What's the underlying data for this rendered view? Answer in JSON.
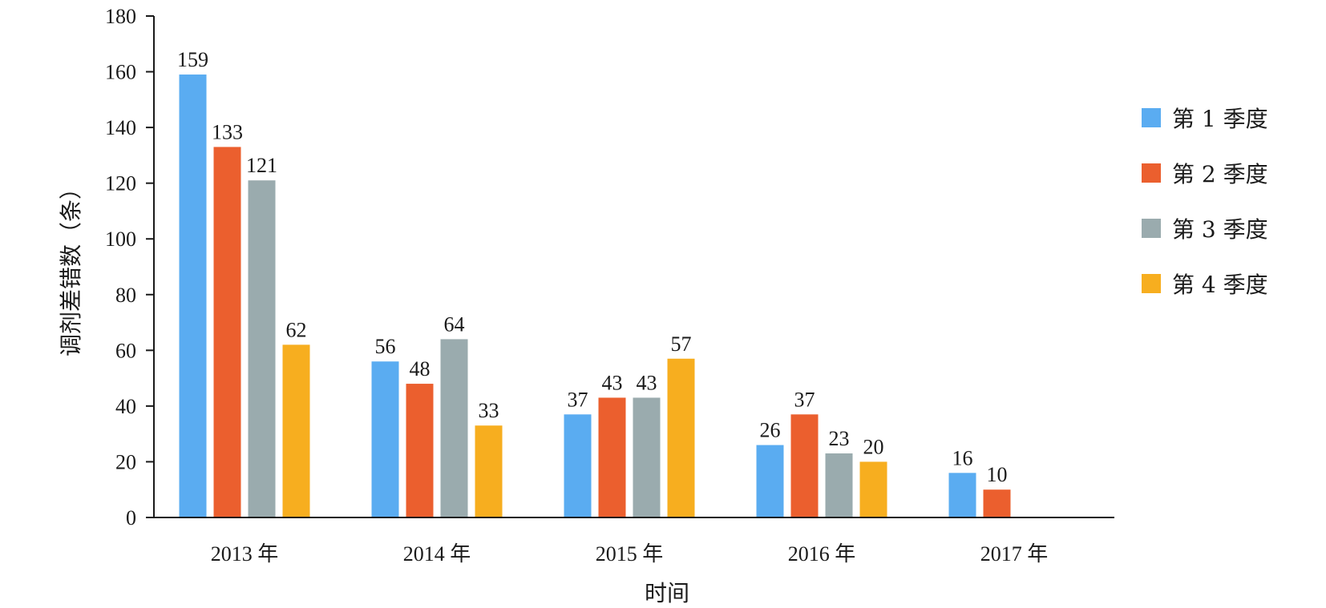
{
  "chart_data": {
    "type": "bar",
    "categories": [
      "2013 年",
      "2014 年",
      "2015 年",
      "2016 年",
      "2017 年"
    ],
    "series": [
      {
        "name": "第 1 季度",
        "color": "#5aacf1",
        "values": [
          159,
          56,
          37,
          26,
          16
        ]
      },
      {
        "name": "第 2 季度",
        "color": "#eb5f2e",
        "values": [
          133,
          48,
          43,
          37,
          10
        ]
      },
      {
        "name": "第 3 季度",
        "color": "#9aabae",
        "values": [
          121,
          64,
          43,
          23,
          null
        ]
      },
      {
        "name": "第 4 季度",
        "color": "#f7ae1f",
        "values": [
          62,
          33,
          57,
          20,
          null
        ]
      }
    ],
    "xlabel": "时间",
    "ylabel": "调剂差错数（条）",
    "ylim": [
      0,
      180
    ],
    "yticks": [
      0,
      20,
      40,
      60,
      80,
      100,
      120,
      140,
      160,
      180
    ],
    "legend_position": "right",
    "grid": false
  }
}
